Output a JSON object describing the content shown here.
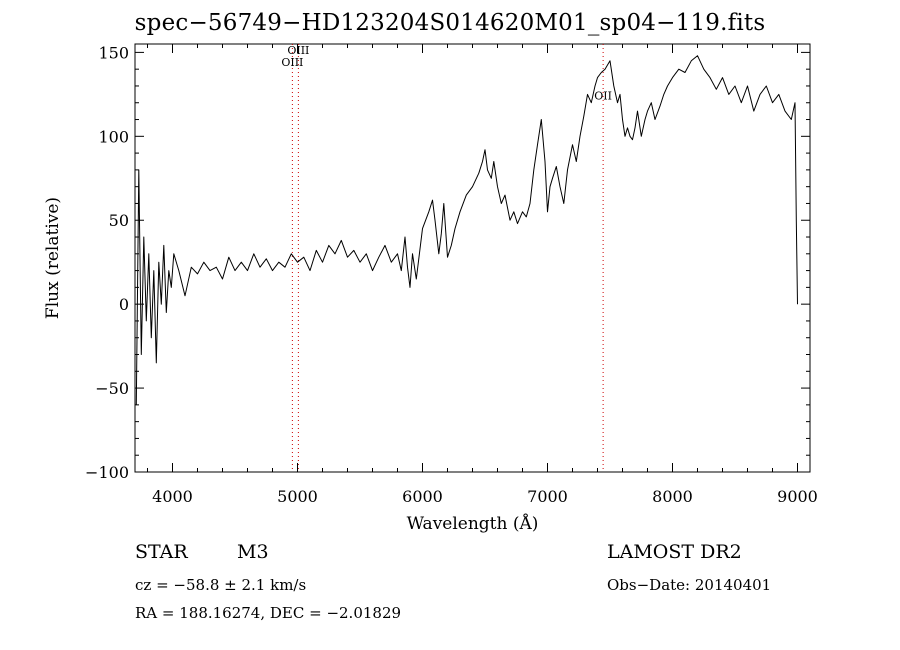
{
  "chart_data": {
    "type": "line",
    "title": "spec−56749−HD123204S014620M01_sp04−119.fits",
    "xlabel": "Wavelength (Å)",
    "ylabel": "Flux (relative)",
    "xlim": [
      3700,
      9100
    ],
    "ylim": [
      -100,
      155
    ],
    "xticks": [
      4000,
      5000,
      6000,
      7000,
      8000,
      9000
    ],
    "yticks": [
      -100,
      -50,
      0,
      50,
      100,
      150
    ],
    "ytick_labels": [
      "−100",
      "−50",
      "0",
      "50",
      "100",
      "150"
    ],
    "grid": false,
    "series": [
      {
        "x": [
          3710,
          3730,
          3750,
          3770,
          3790,
          3810,
          3830,
          3850,
          3870,
          3890,
          3910,
          3930,
          3950,
          3970,
          3990,
          4010,
          4050,
          4100,
          4150,
          4200,
          4250,
          4300,
          4350,
          4400,
          4450,
          4500,
          4550,
          4600,
          4650,
          4700,
          4750,
          4800,
          4850,
          4900,
          4950,
          5000,
          5050,
          5100,
          5150,
          5200,
          5250,
          5300,
          5350,
          5400,
          5450,
          5500,
          5550,
          5600,
          5650,
          5700,
          5750,
          5800,
          5830,
          5860,
          5880,
          5900,
          5920,
          5950,
          6000,
          6050,
          6080,
          6100,
          6130,
          6150,
          6170,
          6200,
          6230,
          6260,
          6300,
          6350,
          6400,
          6450,
          6480,
          6500,
          6520,
          6550,
          6570,
          6600,
          6630,
          6660,
          6700,
          6730,
          6760,
          6800,
          6830,
          6860,
          6890,
          6920,
          6950,
          6980,
          7000,
          7020,
          7040,
          7070,
          7100,
          7130,
          7160,
          7200,
          7230,
          7260,
          7290,
          7320,
          7350,
          7380,
          7400,
          7430,
          7460,
          7500,
          7530,
          7560,
          7580,
          7600,
          7620,
          7640,
          7660,
          7680,
          7700,
          7720,
          7750,
          7780,
          7800,
          7830,
          7860,
          7900,
          7930,
          7960,
          8000,
          8050,
          8100,
          8150,
          8200,
          8250,
          8300,
          8350,
          8400,
          8450,
          8500,
          8550,
          8600,
          8650,
          8700,
          8750,
          8800,
          8850,
          8900,
          8950,
          8980,
          8990,
          9000
        ],
        "y": [
          -60,
          80,
          -30,
          40,
          -10,
          30,
          -20,
          20,
          -35,
          25,
          0,
          35,
          -5,
          20,
          10,
          30,
          20,
          5,
          22,
          18,
          25,
          20,
          22,
          15,
          28,
          20,
          25,
          20,
          30,
          22,
          27,
          20,
          25,
          22,
          30,
          25,
          28,
          20,
          32,
          25,
          35,
          30,
          38,
          28,
          32,
          25,
          30,
          20,
          28,
          35,
          25,
          30,
          20,
          40,
          22,
          10,
          30,
          15,
          45,
          55,
          62,
          50,
          30,
          42,
          60,
          28,
          35,
          45,
          55,
          65,
          70,
          78,
          85,
          92,
          80,
          75,
          85,
          70,
          60,
          65,
          50,
          55,
          48,
          55,
          52,
          60,
          80,
          95,
          110,
          85,
          55,
          70,
          75,
          82,
          70,
          60,
          80,
          95,
          85,
          100,
          112,
          125,
          120,
          130,
          135,
          138,
          140,
          145,
          130,
          120,
          125,
          110,
          100,
          105,
          100,
          98,
          105,
          115,
          100,
          110,
          115,
          120,
          110,
          118,
          125,
          130,
          135,
          140,
          138,
          145,
          148,
          140,
          135,
          128,
          135,
          125,
          130,
          120,
          130,
          115,
          125,
          130,
          120,
          125,
          115,
          110,
          120,
          50,
          0
        ]
      }
    ],
    "annotations": [
      {
        "label": "OIII",
        "x": 4959,
        "y_label": 142
      },
      {
        "label": "OIII",
        "x": 5007,
        "y_label": 149
      },
      {
        "label": "OII",
        "x": 7445,
        "y_label": 122
      }
    ]
  },
  "info": {
    "object_type": "STAR",
    "subclass": "M3",
    "cz": "cz = −58.8 ± 2.1 km/s",
    "radec": "RA = 188.16274, DEC =  −2.01829",
    "survey": "LAMOST DR2",
    "obs_date": "Obs−Date: 20140401"
  },
  "colors": {
    "line": "#000000",
    "marker_line": "#cc0000",
    "background": "#ffffff"
  }
}
